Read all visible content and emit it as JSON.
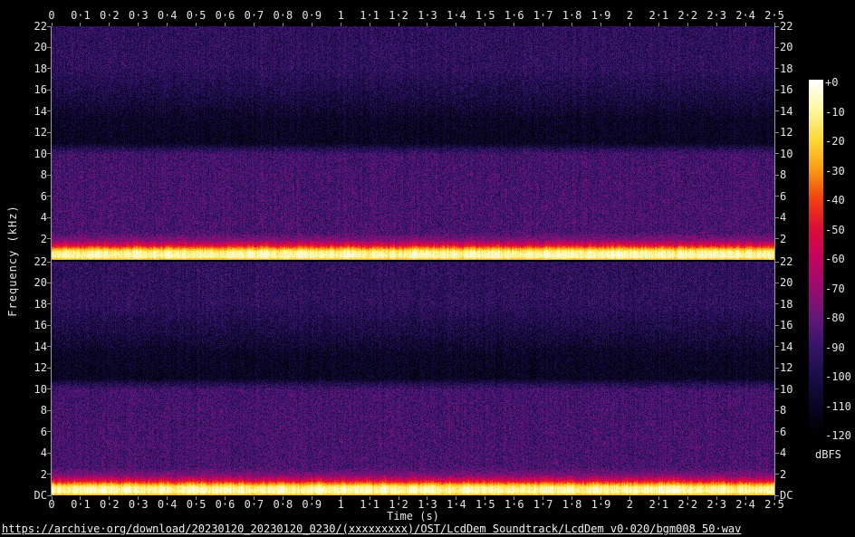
{
  "axes": {
    "time": {
      "label": "Time (s)",
      "tick_labels": [
        "0",
        "0·1",
        "0·2",
        "0·3",
        "0·4",
        "0·5",
        "0·6",
        "0·7",
        "0·8",
        "0·9",
        "1",
        "1·1",
        "1·2",
        "1·3",
        "1·4",
        "1·5",
        "1·6",
        "1·7",
        "1·8",
        "1·9",
        "2",
        "2·1",
        "2·2",
        "2·3",
        "2·4",
        "2·5"
      ],
      "range_s": [
        0,
        2.5
      ]
    },
    "frequency": {
      "label": "Frequency (kHz)",
      "tick_labels": [
        "22",
        "20",
        "18",
        "16",
        "14",
        "12",
        "10",
        "8",
        "6",
        "4",
        "2"
      ],
      "dc_label": "DC",
      "max_khz": 22
    }
  },
  "colorbar": {
    "unit": "dBFS",
    "tick_labels": [
      "+0",
      "-10",
      "-20",
      "-30",
      "-40",
      "-50",
      "-60",
      "-70",
      "-80",
      "-90",
      "-100",
      "-110",
      "-120"
    ],
    "palette": [
      {
        "db": 0,
        "color": "#ffffff"
      },
      {
        "db": -10,
        "color": "#fdf7a2"
      },
      {
        "db": -20,
        "color": "#fcd937"
      },
      {
        "db": -30,
        "color": "#fb9d15"
      },
      {
        "db": -40,
        "color": "#f1420e"
      },
      {
        "db": -50,
        "color": "#dc0d37"
      },
      {
        "db": -60,
        "color": "#c4045e"
      },
      {
        "db": -70,
        "color": "#9b0b6f"
      },
      {
        "db": -80,
        "color": "#651679"
      },
      {
        "db": -90,
        "color": "#341569"
      },
      {
        "db": -100,
        "color": "#1b0d49"
      },
      {
        "db": -110,
        "color": "#0a0524"
      },
      {
        "db": -120,
        "color": "#000000"
      }
    ]
  },
  "footer": {
    "url": "https://archive·org/download/20230120_20230120_0230/(xxxxxxxxx)/OST/LcdDem Soundtrack/LcdDem v0·020/bgm008 50·wav"
  },
  "chart_data": {
    "type": "heatmap",
    "subtype": "audio-spectrogram",
    "channels": 2,
    "x": {
      "label": "Time (s)",
      "range_s": [
        0,
        2.5
      ],
      "tick_step_s": 0.1
    },
    "y": {
      "label": "Frequency (kHz)",
      "range_khz": [
        0,
        22
      ],
      "tick_step_khz": 2,
      "bottom_tick": "DC"
    },
    "z": {
      "label": "dBFS",
      "range_db": [
        -120,
        0
      ],
      "tick_step_db": 10
    },
    "features": [
      {
        "channel": 1,
        "feature": "broadband noise floor, violet",
        "freq_khz": [
          1,
          22
        ],
        "level_dbfs": -90
      },
      {
        "channel": 1,
        "feature": "attenuated dark band",
        "freq_khz": [
          11,
          14
        ],
        "level_dbfs": -110
      },
      {
        "channel": 1,
        "feature": "strong continuous low-frequency energy line",
        "freq_khz": [
          0,
          0.9
        ],
        "level_dbfs": -8,
        "time_s": [
          0,
          2.5
        ]
      },
      {
        "channel": 2,
        "feature": "broadband noise floor, violet",
        "freq_khz": [
          1,
          22
        ],
        "level_dbfs": -90
      },
      {
        "channel": 2,
        "feature": "attenuated dark band",
        "freq_khz": [
          11,
          14
        ],
        "level_dbfs": -110
      },
      {
        "channel": 2,
        "feature": "strong continuous low-frequency energy line",
        "freq_khz": [
          0,
          0.9
        ],
        "level_dbfs": -8,
        "time_s": [
          0,
          2.5
        ]
      }
    ],
    "render_profile_fraction_to_db": [
      [
        0.0,
        -93
      ],
      [
        0.18,
        -93
      ],
      [
        0.3,
        -101
      ],
      [
        0.4,
        -109
      ],
      [
        0.5,
        -110
      ],
      [
        0.525,
        -96
      ],
      [
        0.55,
        -87
      ],
      [
        0.88,
        -86
      ],
      [
        0.915,
        -75
      ],
      [
        0.94,
        -48
      ],
      [
        0.955,
        -25
      ],
      [
        0.965,
        -12
      ],
      [
        0.985,
        -7
      ],
      [
        0.995,
        -18
      ],
      [
        1.0,
        -30
      ]
    ],
    "noise_amplitude_db": 10
  }
}
